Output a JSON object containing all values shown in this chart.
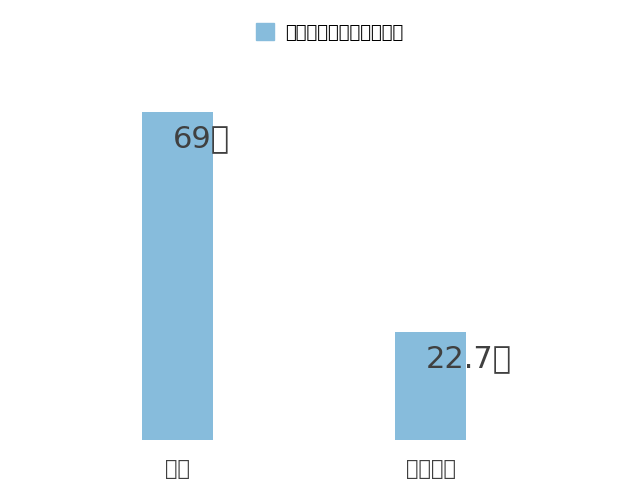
{
  "categories": [
    "北里",
    "私大平均"
  ],
  "values": [
    69,
    22.7
  ],
  "number_labels": [
    "69",
    "22.7"
  ],
  "unit_label": "件",
  "bar_color": "#87BCDC",
  "legend_label": "学術集会への研究発表数",
  "legend_color": "#87BCDC",
  "background_color": "#ffffff",
  "text_color": "#404040",
  "number_fontsize": 22,
  "unit_fontsize": 14,
  "tick_fontsize": 15,
  "legend_fontsize": 13,
  "ylim": [
    0,
    80
  ],
  "bar_width": 0.28,
  "positions": [
    1,
    2
  ],
  "xlim": [
    0.5,
    2.7
  ]
}
